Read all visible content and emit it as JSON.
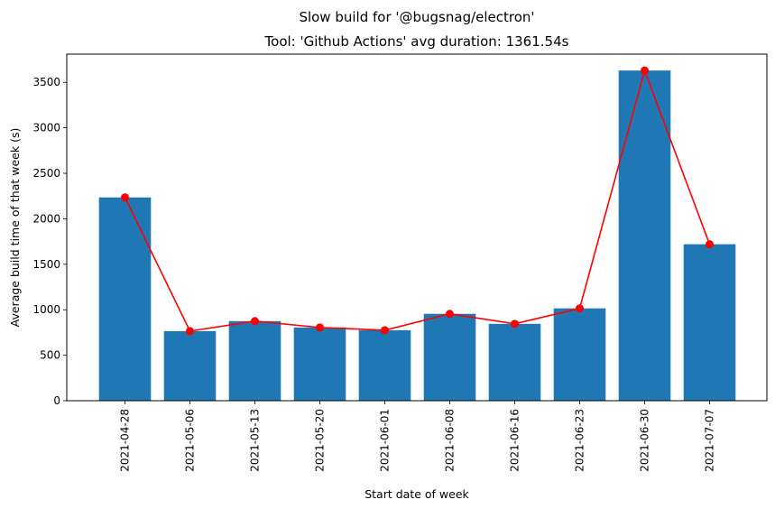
{
  "chart_data": {
    "type": "bar",
    "suptitle": "Slow build for '@bugsnag/electron'",
    "title": "Tool: 'Github Actions' avg duration: 1361.54s",
    "xlabel": "Start date of week",
    "ylabel": "Average build time of that week (s)",
    "categories": [
      "2021-04-28",
      "2021-05-06",
      "2021-05-13",
      "2021-05-20",
      "2021-06-01",
      "2021-06-08",
      "2021-06-16",
      "2021-06-23",
      "2021-06-30",
      "2021-07-07"
    ],
    "values": [
      2235,
      765,
      875,
      805,
      775,
      955,
      845,
      1015,
      3630,
      1720
    ],
    "yticks": [
      0,
      500,
      1000,
      1500,
      2000,
      2500,
      3000,
      3500
    ],
    "ylim": [
      0,
      3810
    ],
    "bar_color": "#1f77b4",
    "line_color": "#ff0000",
    "grid": false,
    "legend": "none"
  }
}
